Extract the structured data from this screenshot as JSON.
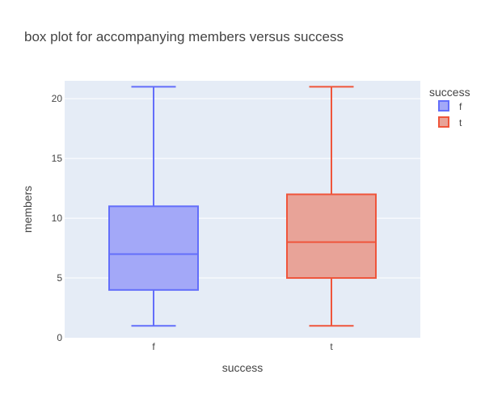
{
  "chart_data": {
    "type": "box",
    "title": "box plot for accompanying members versus success",
    "xlabel": "success",
    "ylabel": "members",
    "ylim": [
      0,
      21.5
    ],
    "yticks": [
      0,
      5,
      10,
      15,
      20
    ],
    "grid": true,
    "background_color": "#E5ECF6",
    "legend": {
      "title": "success",
      "placement": "top-right"
    },
    "categories": [
      "f",
      "t"
    ],
    "series": [
      {
        "name": "f",
        "color": "#636EFA",
        "fill": "#A3A8F8",
        "min": 1,
        "q1": 4,
        "median": 7,
        "q3": 11,
        "max": 21
      },
      {
        "name": "t",
        "color": "#EF553B",
        "fill": "#E8A398",
        "min": 1,
        "q1": 5,
        "median": 8,
        "q3": 12,
        "max": 21
      }
    ]
  }
}
